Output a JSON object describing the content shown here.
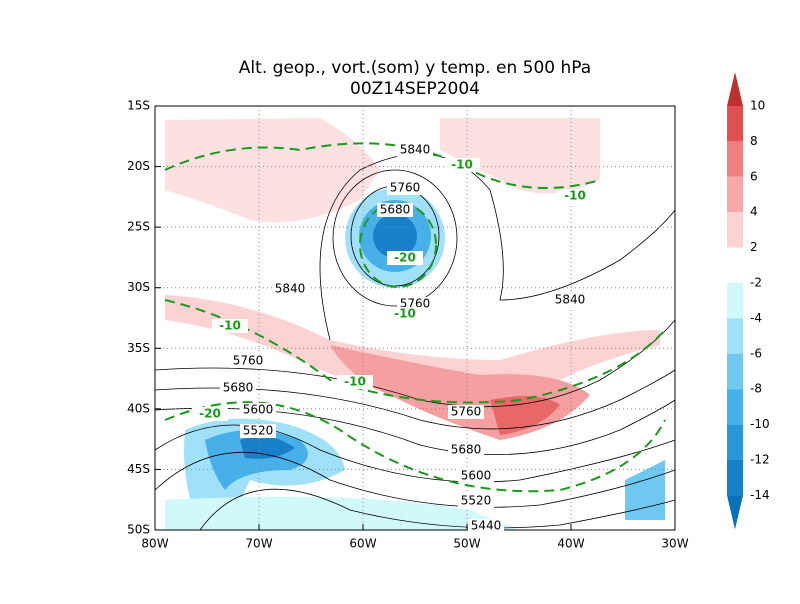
{
  "header": {
    "title": "Alt. geop., vort.(som) y temp. en 500 hPa",
    "subtitle": "00Z14SEP2004"
  },
  "map": {
    "lat_labels": [
      "15S",
      "20S",
      "25S",
      "30S",
      "35S",
      "40S",
      "45S",
      "50S"
    ],
    "lon_labels": [
      "80W",
      "70W",
      "60W",
      "50W",
      "40W",
      "30W"
    ],
    "contour_labels": [
      "5840",
      "-10",
      "5760",
      "5680",
      "-20",
      "-10",
      "5840",
      "5760",
      "-10",
      "5840",
      "-10",
      "5760",
      "-10",
      "5680",
      "5600",
      "-20",
      "5760",
      "5520",
      "5680",
      "5600",
      "5520",
      "5440"
    ]
  },
  "colorbar": {
    "labels": [
      "10",
      "8",
      "6",
      "4",
      "2",
      "-2",
      "-4",
      "-6",
      "-8",
      "-10",
      "-12",
      "-14"
    ]
  }
}
